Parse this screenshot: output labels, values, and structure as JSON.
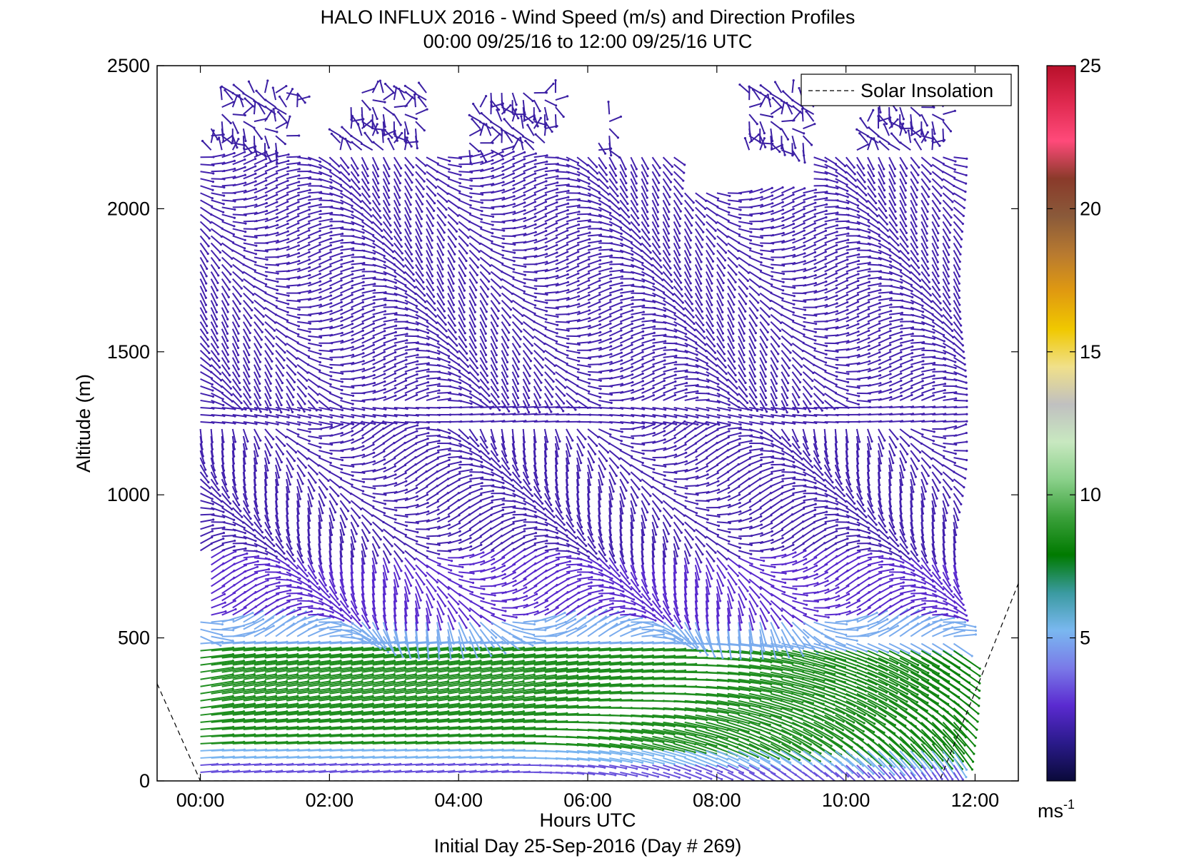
{
  "chart_data": {
    "type": "quiver",
    "title": "HALO INFLUX 2016 - Wind Speed (m/s) and Direction Profiles",
    "subtitle": "00:00 09/25/16 to 12:00 09/25/16  UTC",
    "xlabel": "Hours UTC",
    "ylabel": "Altitude (m)",
    "footer": "Initial Day 25-Sep-2016 (Day # 269)",
    "xlim": [
      -0.67,
      12.67
    ],
    "ylim": [
      0,
      2500
    ],
    "x_ticks": [
      0,
      2,
      4,
      6,
      8,
      10,
      12
    ],
    "x_tick_labels": [
      "00:00",
      "02:00",
      "04:00",
      "06:00",
      "08:00",
      "10:00",
      "12:00"
    ],
    "y_ticks": [
      0,
      500,
      1000,
      1500,
      2000,
      2500
    ],
    "y_tick_labels": [
      "0",
      "500",
      "1000",
      "1500",
      "2000",
      "2500"
    ],
    "legend": {
      "entries": [
        "Solar Insolation"
      ],
      "position": "top-right"
    },
    "colorbar": {
      "range": [
        0,
        25
      ],
      "ticks": [
        5,
        10,
        15,
        20,
        25
      ],
      "tick_labels": [
        "5",
        "10",
        "15",
        "20",
        "25"
      ],
      "unit_label": "ms",
      "unit_superscript": "-1",
      "colors": [
        "#0a0a3a",
        "#2a1a8a",
        "#5a2ad0",
        "#7a7ae8",
        "#7ab8f0",
        "#3a9aa0",
        "#007a00",
        "#3aa03a",
        "#8ad08a",
        "#c8e8c0",
        "#c0c0c0",
        "#f0e08a",
        "#f0c800",
        "#e09a10",
        "#b87a30",
        "#8a5a3a",
        "#8a3a2a",
        "#ff4a7a",
        "#e02a50",
        "#b8102a"
      ]
    },
    "solar_insolation": {
      "x": [
        -0.67,
        0.0,
        11.45,
        12.67
      ],
      "y": [
        340,
        0,
        0,
        690
      ]
    },
    "wind_time_range": [
      0,
      11.75
    ],
    "wind_time_step": 0.1667,
    "altitude_levels": [
      30,
      55,
      80,
      105,
      130,
      155,
      180,
      205,
      230,
      255,
      280,
      305,
      330,
      355,
      380,
      405,
      430,
      455,
      480,
      505,
      530,
      555,
      580,
      605,
      630,
      655,
      680,
      705,
      730,
      755,
      780,
      805,
      830,
      855,
      880,
      905,
      930,
      955,
      980,
      1005,
      1030,
      1055,
      1080,
      1105,
      1130,
      1155,
      1180,
      1205,
      1230,
      1255,
      1280,
      1305,
      1330,
      1355,
      1380,
      1405,
      1430,
      1455,
      1480,
      1505,
      1530,
      1555,
      1580,
      1605,
      1630,
      1655,
      1680,
      1705,
      1730,
      1755,
      1780,
      1805,
      1830,
      1855,
      1880,
      1905,
      1930,
      1955,
      1980,
      2005,
      2030,
      2055,
      2080,
      2105,
      2130,
      2155,
      2180,
      2205,
      2230,
      2255,
      2280,
      2305,
      2330,
      2355,
      2380,
      2405
    ],
    "wind_speed_by_layer_ms": {
      "0-60 m": 3.5,
      "80-130 m": 5.0,
      "130-480 m": 8.5,
      "480-580 m": 5.0,
      "580-800 m": 2.5,
      "800-2200 m": 2.0,
      "2200-2420 m": 1.8
    },
    "notes": "Wind barbs at each time/altitude bin; color encodes wind speed via colorbar; low-level jet of about 8-9 m/s between 130 and 480 m, weaker winds above."
  }
}
